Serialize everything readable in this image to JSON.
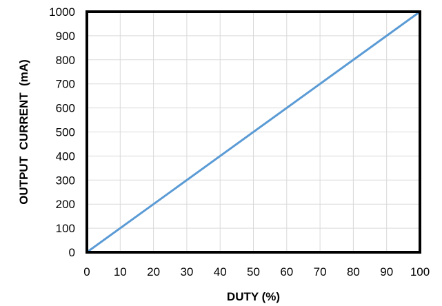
{
  "chart_data": {
    "type": "line",
    "title": "",
    "xlabel": "DUTY (%)",
    "ylabel": "OUTPUT  CURRENT  (mA)",
    "xlim": [
      0,
      100
    ],
    "ylim": [
      0,
      1000
    ],
    "x_ticks": [
      0,
      10,
      20,
      30,
      40,
      50,
      60,
      70,
      80,
      90,
      100
    ],
    "y_ticks": [
      0,
      100,
      200,
      300,
      400,
      500,
      600,
      700,
      800,
      900,
      1000
    ],
    "grid": true,
    "legend": "none",
    "series": [
      {
        "x": [
          0,
          100
        ],
        "y": [
          0,
          1000
        ],
        "color": "#5b9bd5"
      }
    ],
    "colors": {
      "line": "#5b9bd5",
      "grid": "#d9d9d9",
      "frame": "#000000"
    }
  }
}
